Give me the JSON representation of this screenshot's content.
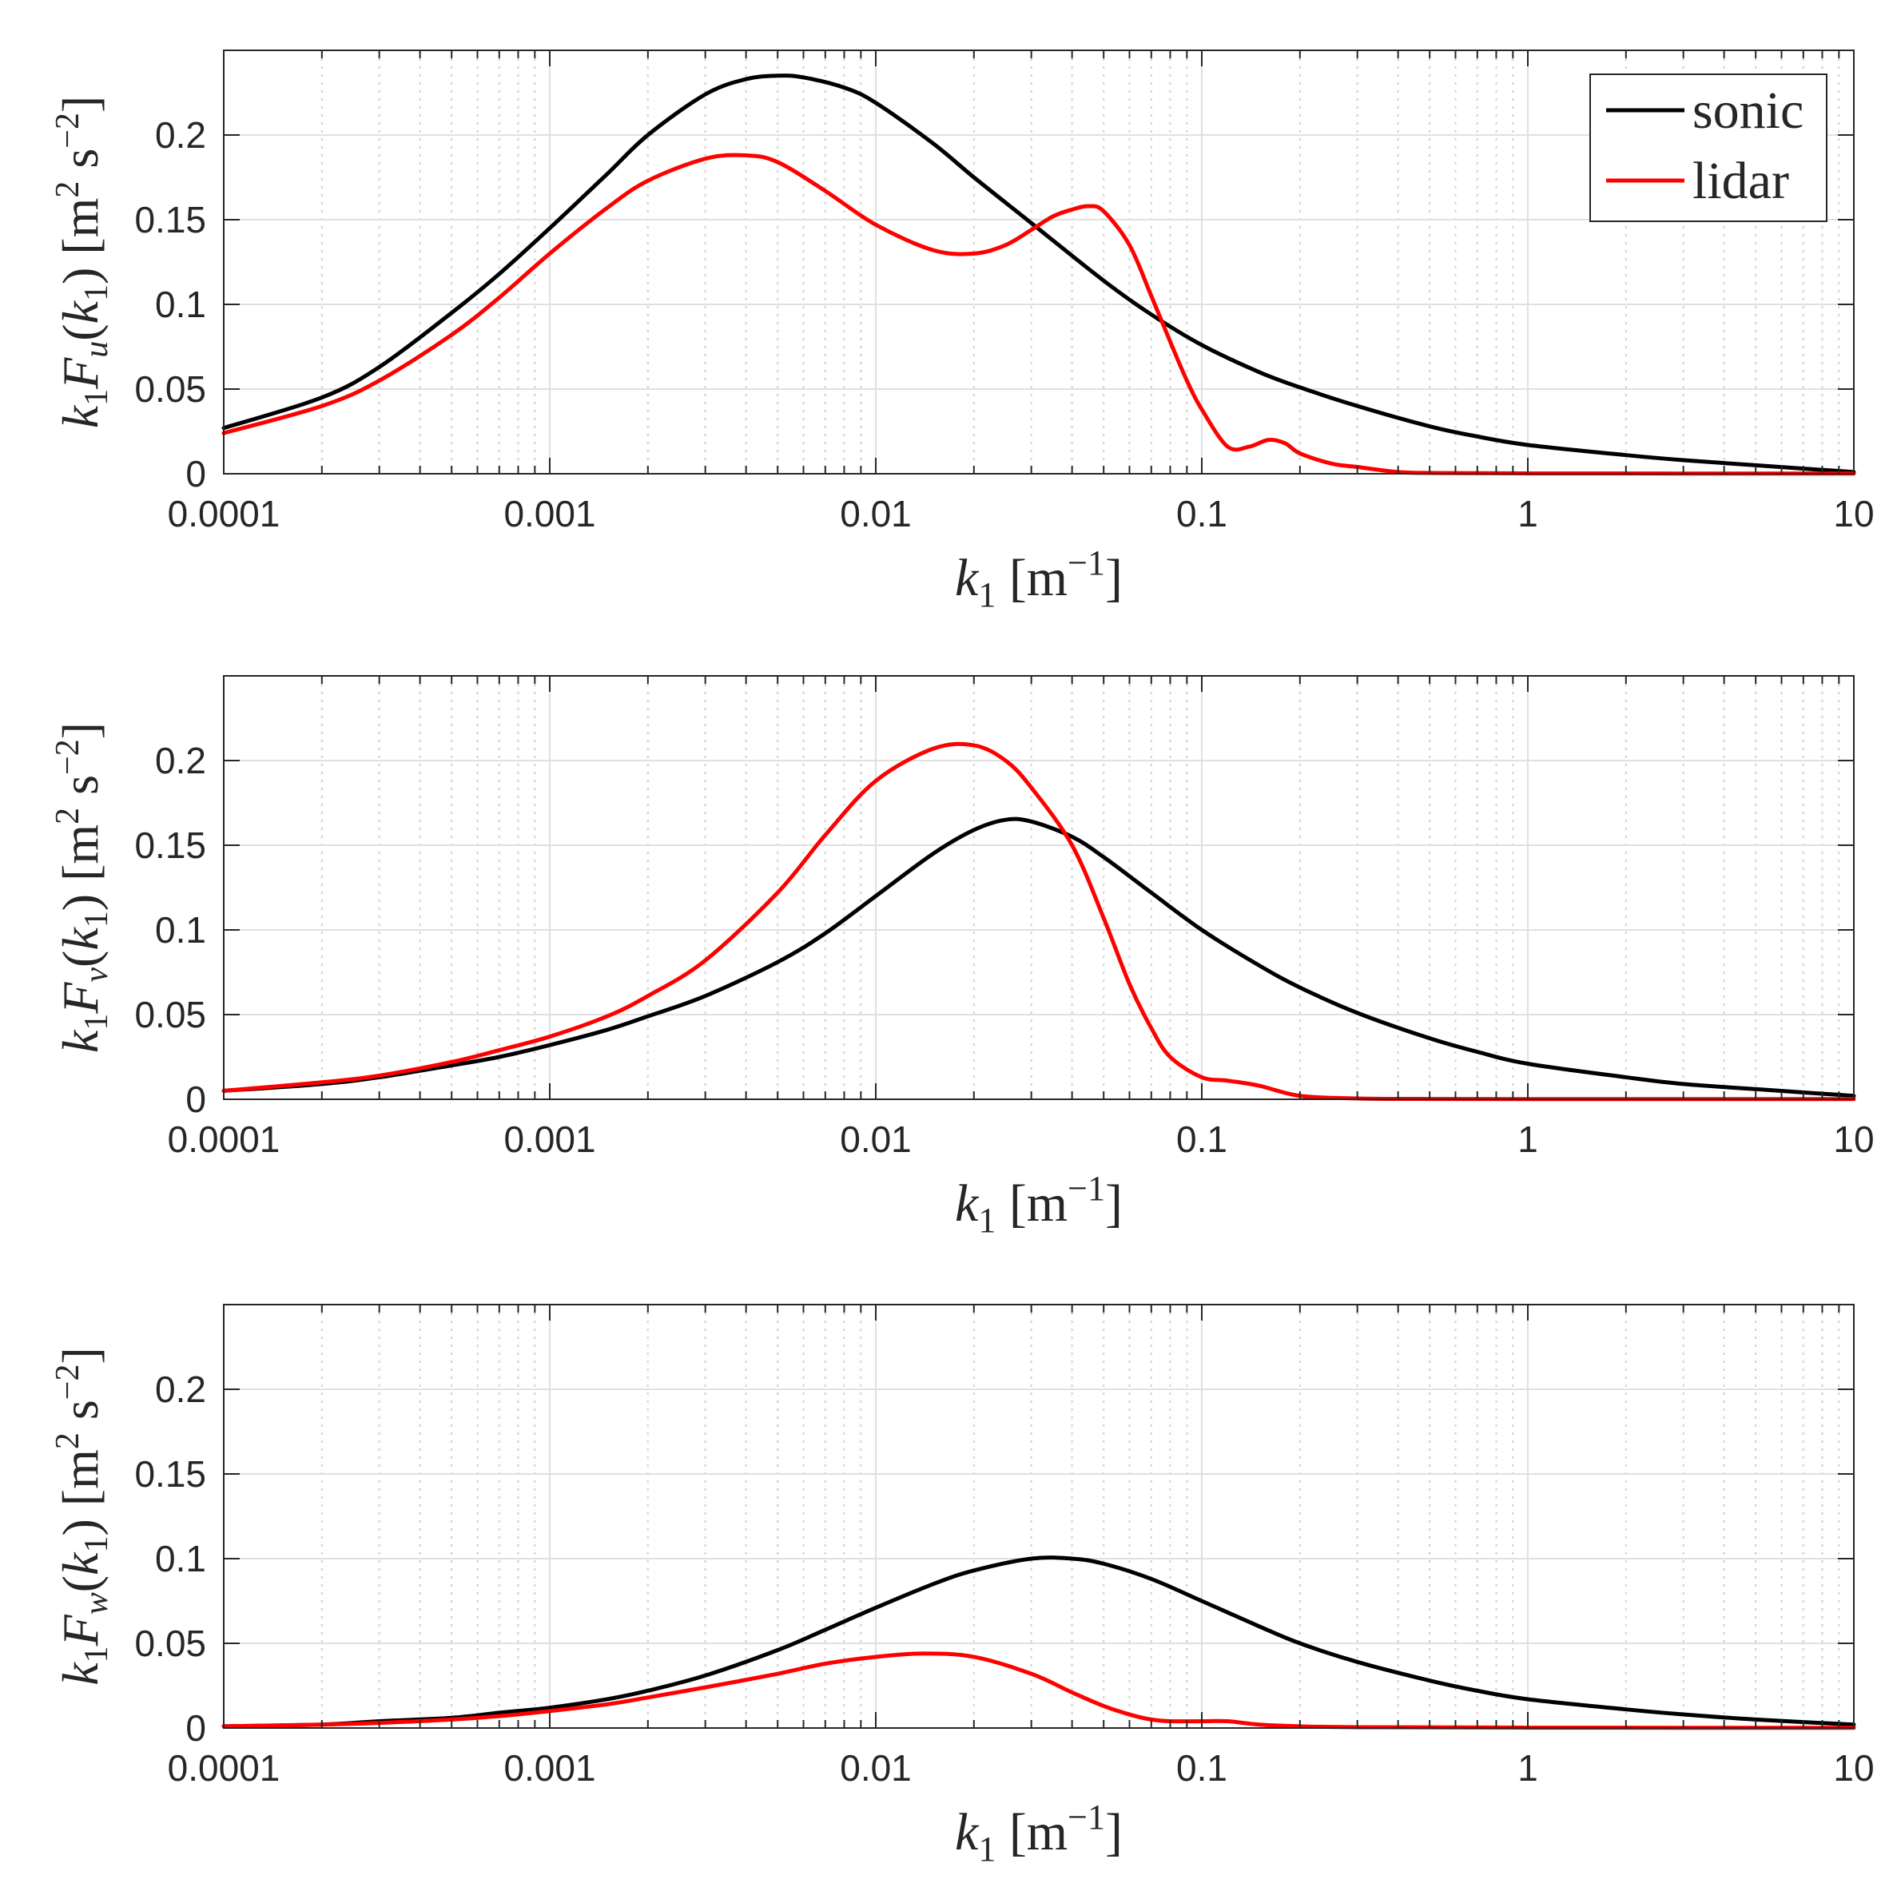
{
  "figure": {
    "legend": {
      "position": "top-right",
      "entries": [
        {
          "label": "sonic",
          "color": "#000000"
        },
        {
          "label": "lidar",
          "color": "#ff0000"
        }
      ]
    }
  },
  "chart_data": [
    {
      "type": "line",
      "title": "",
      "xlabel": "k1 [m^-1]",
      "ylabel": "k1 Fu(k1) [m2 s-2]",
      "x_scale": "log",
      "xlim": [
        0.0001,
        10
      ],
      "ylim": [
        0,
        0.25
      ],
      "grid": true,
      "x_ticks": [
        0.0001,
        0.001,
        0.01,
        0.1,
        1,
        10
      ],
      "x_tick_labels": [
        "0.0001",
        "0.001",
        "0.01",
        "0.1",
        "1",
        "10"
      ],
      "y_ticks": [
        0,
        0.05,
        0.1,
        0.15,
        0.2
      ],
      "y_tick_labels": [
        "0",
        "0.05",
        "0.1",
        "0.15",
        "0.2"
      ],
      "series": [
        {
          "name": "sonic",
          "color": "#000000",
          "x": [
            0.0001,
            0.0002,
            0.0003,
            0.0005,
            0.0007,
            0.001,
            0.0015,
            0.002,
            0.003,
            0.004,
            0.005,
            0.006,
            0.008,
            0.01,
            0.015,
            0.02,
            0.03,
            0.05,
            0.07,
            0.1,
            0.15,
            0.2,
            0.3,
            0.5,
            0.7,
            1,
            2,
            3,
            5,
            10
          ],
          "values": [
            0.027,
            0.045,
            0.063,
            0.095,
            0.118,
            0.145,
            0.177,
            0.2,
            0.224,
            0.233,
            0.235,
            0.234,
            0.228,
            0.219,
            0.195,
            0.175,
            0.148,
            0.114,
            0.094,
            0.076,
            0.06,
            0.051,
            0.04,
            0.028,
            0.022,
            0.017,
            0.011,
            0.008,
            0.005,
            0.001
          ]
        },
        {
          "name": "lidar",
          "color": "#ff0000",
          "x": [
            0.0001,
            0.0002,
            0.0003,
            0.0005,
            0.0007,
            0.001,
            0.0015,
            0.002,
            0.003,
            0.004,
            0.005,
            0.007,
            0.01,
            0.015,
            0.02,
            0.025,
            0.03,
            0.035,
            0.04,
            0.045,
            0.05,
            0.06,
            0.07,
            0.08,
            0.09,
            0.1,
            0.12,
            0.14,
            0.16,
            0.18,
            0.2,
            0.25,
            0.3,
            0.4,
            0.5,
            1,
            10
          ],
          "values": [
            0.024,
            0.04,
            0.055,
            0.082,
            0.104,
            0.13,
            0.157,
            0.173,
            0.186,
            0.188,
            0.184,
            0.167,
            0.147,
            0.132,
            0.13,
            0.135,
            0.144,
            0.152,
            0.156,
            0.158,
            0.155,
            0.135,
            0.105,
            0.078,
            0.055,
            0.038,
            0.016,
            0.016,
            0.02,
            0.018,
            0.012,
            0.006,
            0.004,
            0.001,
            0.0005,
            0.0002,
            0.0001
          ]
        }
      ]
    },
    {
      "type": "line",
      "title": "",
      "xlabel": "k1 [m^-1]",
      "ylabel": "k1 Fv(k1) [m2 s-2]",
      "x_scale": "log",
      "xlim": [
        0.0001,
        10
      ],
      "ylim": [
        0,
        0.25
      ],
      "grid": true,
      "x_ticks": [
        0.0001,
        0.001,
        0.01,
        0.1,
        1,
        10
      ],
      "x_tick_labels": [
        "0.0001",
        "0.001",
        "0.01",
        "0.1",
        "1",
        "10"
      ],
      "y_ticks": [
        0,
        0.05,
        0.1,
        0.15,
        0.2
      ],
      "y_tick_labels": [
        "0",
        "0.05",
        "0.1",
        "0.15",
        "0.2"
      ],
      "series": [
        {
          "name": "sonic",
          "color": "#000000",
          "x": [
            0.0001,
            0.0002,
            0.0003,
            0.0005,
            0.0007,
            0.001,
            0.0015,
            0.002,
            0.003,
            0.005,
            0.007,
            0.01,
            0.015,
            0.02,
            0.025,
            0.03,
            0.04,
            0.05,
            0.07,
            0.1,
            0.15,
            0.2,
            0.3,
            0.5,
            0.7,
            1,
            2,
            3,
            5,
            10
          ],
          "values": [
            0.005,
            0.009,
            0.013,
            0.02,
            0.025,
            0.032,
            0.041,
            0.049,
            0.061,
            0.081,
            0.098,
            0.12,
            0.145,
            0.159,
            0.165,
            0.164,
            0.155,
            0.143,
            0.122,
            0.1,
            0.079,
            0.066,
            0.051,
            0.036,
            0.028,
            0.021,
            0.013,
            0.009,
            0.006,
            0.002
          ]
        },
        {
          "name": "lidar",
          "color": "#ff0000",
          "x": [
            0.0001,
            0.0002,
            0.0003,
            0.0005,
            0.0007,
            0.001,
            0.0015,
            0.002,
            0.003,
            0.005,
            0.007,
            0.01,
            0.015,
            0.02,
            0.025,
            0.03,
            0.04,
            0.05,
            0.06,
            0.07,
            0.08,
            0.1,
            0.12,
            0.15,
            0.2,
            0.3,
            0.5,
            1,
            10
          ],
          "values": [
            0.005,
            0.01,
            0.014,
            0.022,
            0.029,
            0.037,
            0.049,
            0.061,
            0.082,
            0.122,
            0.156,
            0.188,
            0.207,
            0.209,
            0.2,
            0.184,
            0.15,
            0.107,
            0.068,
            0.042,
            0.025,
            0.013,
            0.011,
            0.008,
            0.002,
            0.0005,
            0.0002,
            0.0001,
            0.0001
          ]
        }
      ]
    },
    {
      "type": "line",
      "title": "",
      "xlabel": "k1 [m^-1]",
      "ylabel": "k1 Fw(k1) [m2 s-2]",
      "x_scale": "log",
      "xlim": [
        0.0001,
        10
      ],
      "ylim": [
        0,
        0.25
      ],
      "grid": true,
      "x_ticks": [
        0.0001,
        0.001,
        0.01,
        0.1,
        1,
        10
      ],
      "x_tick_labels": [
        "0.0001",
        "0.001",
        "0.01",
        "0.1",
        "1",
        "10"
      ],
      "y_ticks": [
        0,
        0.05,
        0.1,
        0.15,
        0.2
      ],
      "y_tick_labels": [
        "0",
        "0.05",
        "0.1",
        "0.15",
        "0.2"
      ],
      "series": [
        {
          "name": "sonic",
          "color": "#000000",
          "x": [
            0.0001,
            0.0002,
            0.0003,
            0.0005,
            0.0007,
            0.001,
            0.0015,
            0.002,
            0.003,
            0.005,
            0.007,
            0.01,
            0.015,
            0.02,
            0.03,
            0.04,
            0.05,
            0.07,
            0.1,
            0.15,
            0.2,
            0.3,
            0.5,
            0.7,
            1,
            2,
            3,
            5,
            10
          ],
          "values": [
            0.001,
            0.002,
            0.004,
            0.006,
            0.009,
            0.012,
            0.017,
            0.022,
            0.031,
            0.046,
            0.058,
            0.071,
            0.085,
            0.093,
            0.1,
            0.1,
            0.097,
            0.088,
            0.075,
            0.06,
            0.05,
            0.039,
            0.028,
            0.022,
            0.017,
            0.011,
            0.008,
            0.005,
            0.002
          ]
        },
        {
          "name": "lidar",
          "color": "#ff0000",
          "x": [
            0.0001,
            0.0002,
            0.0003,
            0.0005,
            0.0007,
            0.001,
            0.0015,
            0.002,
            0.003,
            0.005,
            0.007,
            0.01,
            0.014,
            0.02,
            0.03,
            0.04,
            0.05,
            0.06,
            0.07,
            0.08,
            0.1,
            0.12,
            0.15,
            0.2,
            0.3,
            1,
            10
          ],
          "values": [
            0.001,
            0.002,
            0.003,
            0.005,
            0.007,
            0.01,
            0.014,
            0.018,
            0.024,
            0.032,
            0.038,
            0.042,
            0.044,
            0.042,
            0.032,
            0.021,
            0.013,
            0.008,
            0.005,
            0.004,
            0.004,
            0.004,
            0.002,
            0.001,
            0.0005,
            0.0002,
            0.0001
          ]
        }
      ]
    }
  ]
}
